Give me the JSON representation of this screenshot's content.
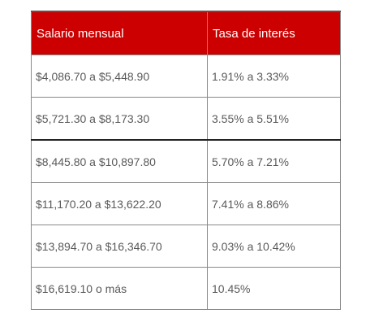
{
  "table": {
    "headers": {
      "salary": "Salario mensual",
      "rate": "Tasa de interés"
    },
    "rows": [
      {
        "salary": "$4,086.70 a $5,448.90",
        "rate": "1.91% a 3.33%"
      },
      {
        "salary": "$5,721.30 a $8,173.30",
        "rate": "3.55% a 5.51%"
      },
      {
        "salary": "$8,445.80 a $10,897.80",
        "rate": "5.70% a 7.21%"
      },
      {
        "salary": "$11,170.20 a $13,622.20",
        "rate": "7.41% a 8.86%"
      },
      {
        "salary": "$13,894.70 a $16,346.70",
        "rate": "9.03% a 10.42%"
      },
      {
        "salary": "$16,619.10 o más",
        "rate": "10.45%"
      }
    ],
    "colors": {
      "header_bg": "#cc0000",
      "header_text": "#ffffff",
      "cell_text": "#5a5a5a",
      "border": "#8a8a8a"
    }
  }
}
